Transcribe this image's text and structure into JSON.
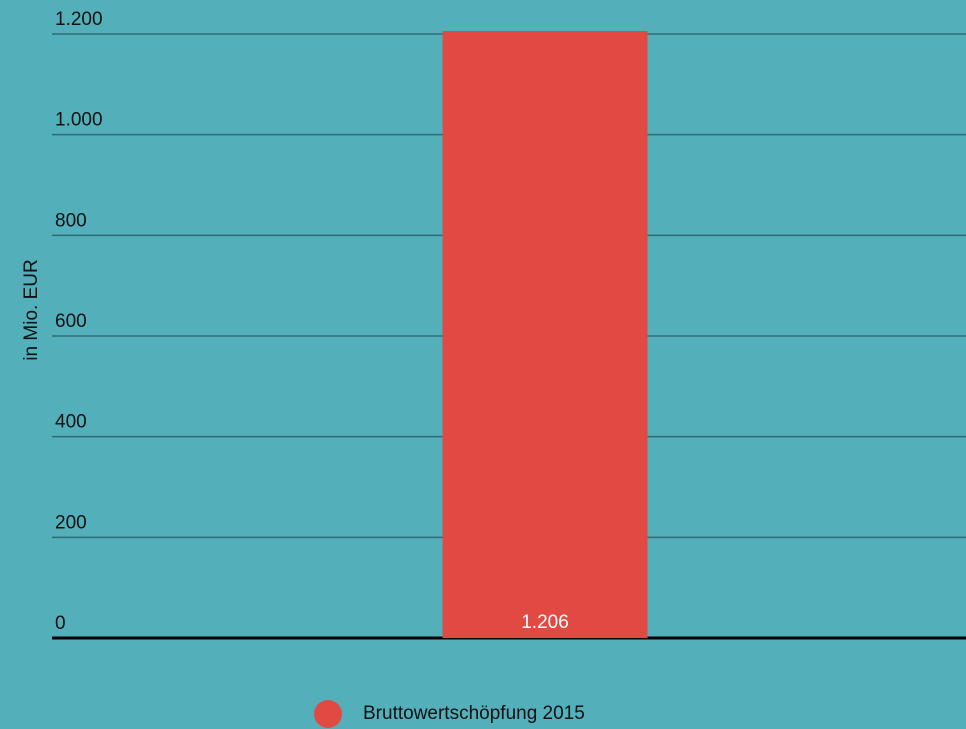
{
  "chart_data": {
    "type": "bar",
    "y_label": "in Mio. EUR",
    "categories": [
      null
    ],
    "series": [
      {
        "name": "Bruttowertschöpfung 2015",
        "color": "#e04a43",
        "values": [
          1206
        ],
        "value_labels": [
          "1.206"
        ]
      }
    ],
    "ylim": [
      0,
      1200
    ],
    "yticks": [
      0,
      200,
      400,
      600,
      800,
      {
        "value": 1000,
        "label": "1.000"
      },
      {
        "value": 1200,
        "label": "1.200"
      }
    ],
    "grid": true,
    "legend": "bottom"
  }
}
